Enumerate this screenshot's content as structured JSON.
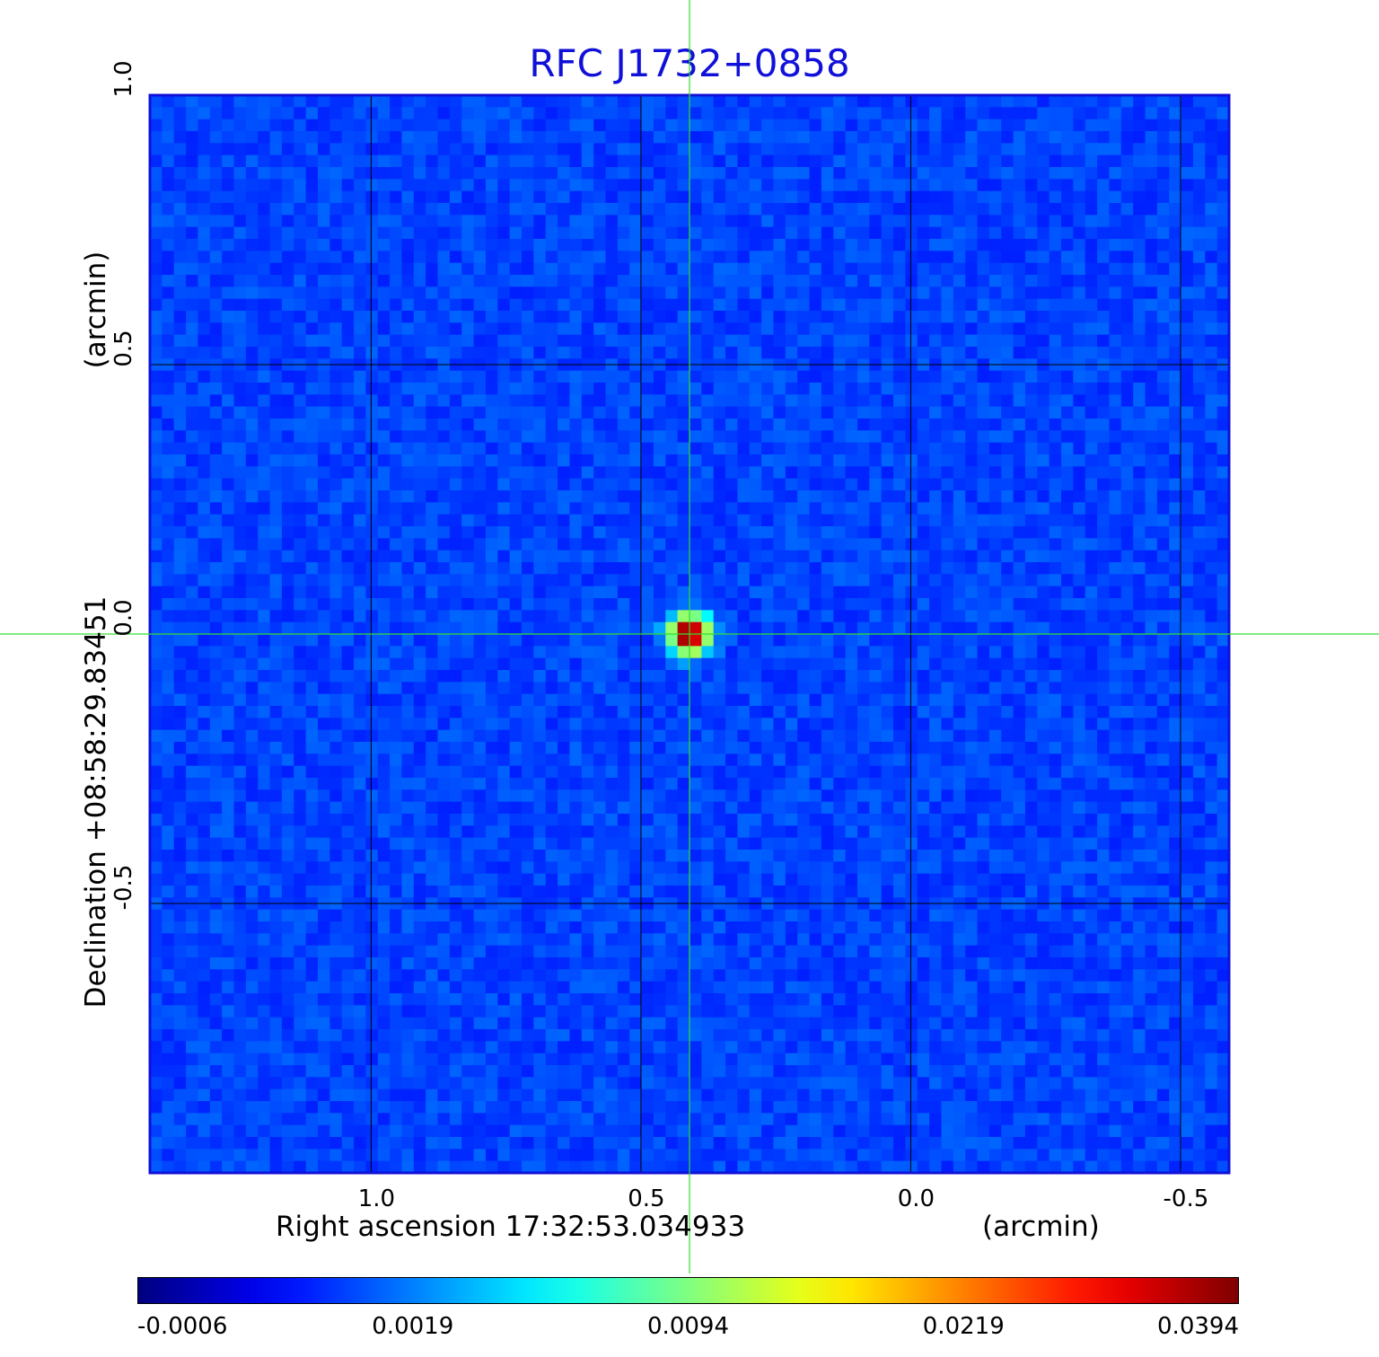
{
  "chart_data": {
    "type": "heatmap",
    "title": "RFC J1732+0858",
    "xlabel": "Right ascension  17:32:53.034933",
    "xunit": "(arcmin)",
    "ylabel": "Declination  +08:58:29.83451",
    "yunit": "(arcmin)",
    "x_range": [
      1.41,
      -0.59
    ],
    "y_range": [
      -1.0,
      1.0
    ],
    "x_ticks": [
      {
        "value": 1.0,
        "label": "1.0"
      },
      {
        "value": 0.5,
        "label": "0.5"
      },
      {
        "value": 0.0,
        "label": "0.0"
      },
      {
        "value": -0.5,
        "label": "-0.5"
      }
    ],
    "y_ticks": [
      {
        "value": 1.0,
        "label": "1.0"
      },
      {
        "value": 0.5,
        "label": "0.5"
      },
      {
        "value": 0.0,
        "label": "0.0"
      },
      {
        "value": -0.5,
        "label": "-0.5"
      }
    ],
    "grid": true,
    "colormap": "jet",
    "colorbar_ticks": [
      "-0.0006",
      "0.0019",
      "0.0094",
      "0.0219",
      "0.0394"
    ],
    "peak": {
      "x": 0.41,
      "y": 0.0,
      "value": 0.0394
    },
    "crosshair": {
      "x": 0.41,
      "y": 0.0,
      "color": "#33dd33"
    },
    "background_value": 0.0,
    "axis_color": "#1010d8",
    "title_color": "#1010d8"
  }
}
